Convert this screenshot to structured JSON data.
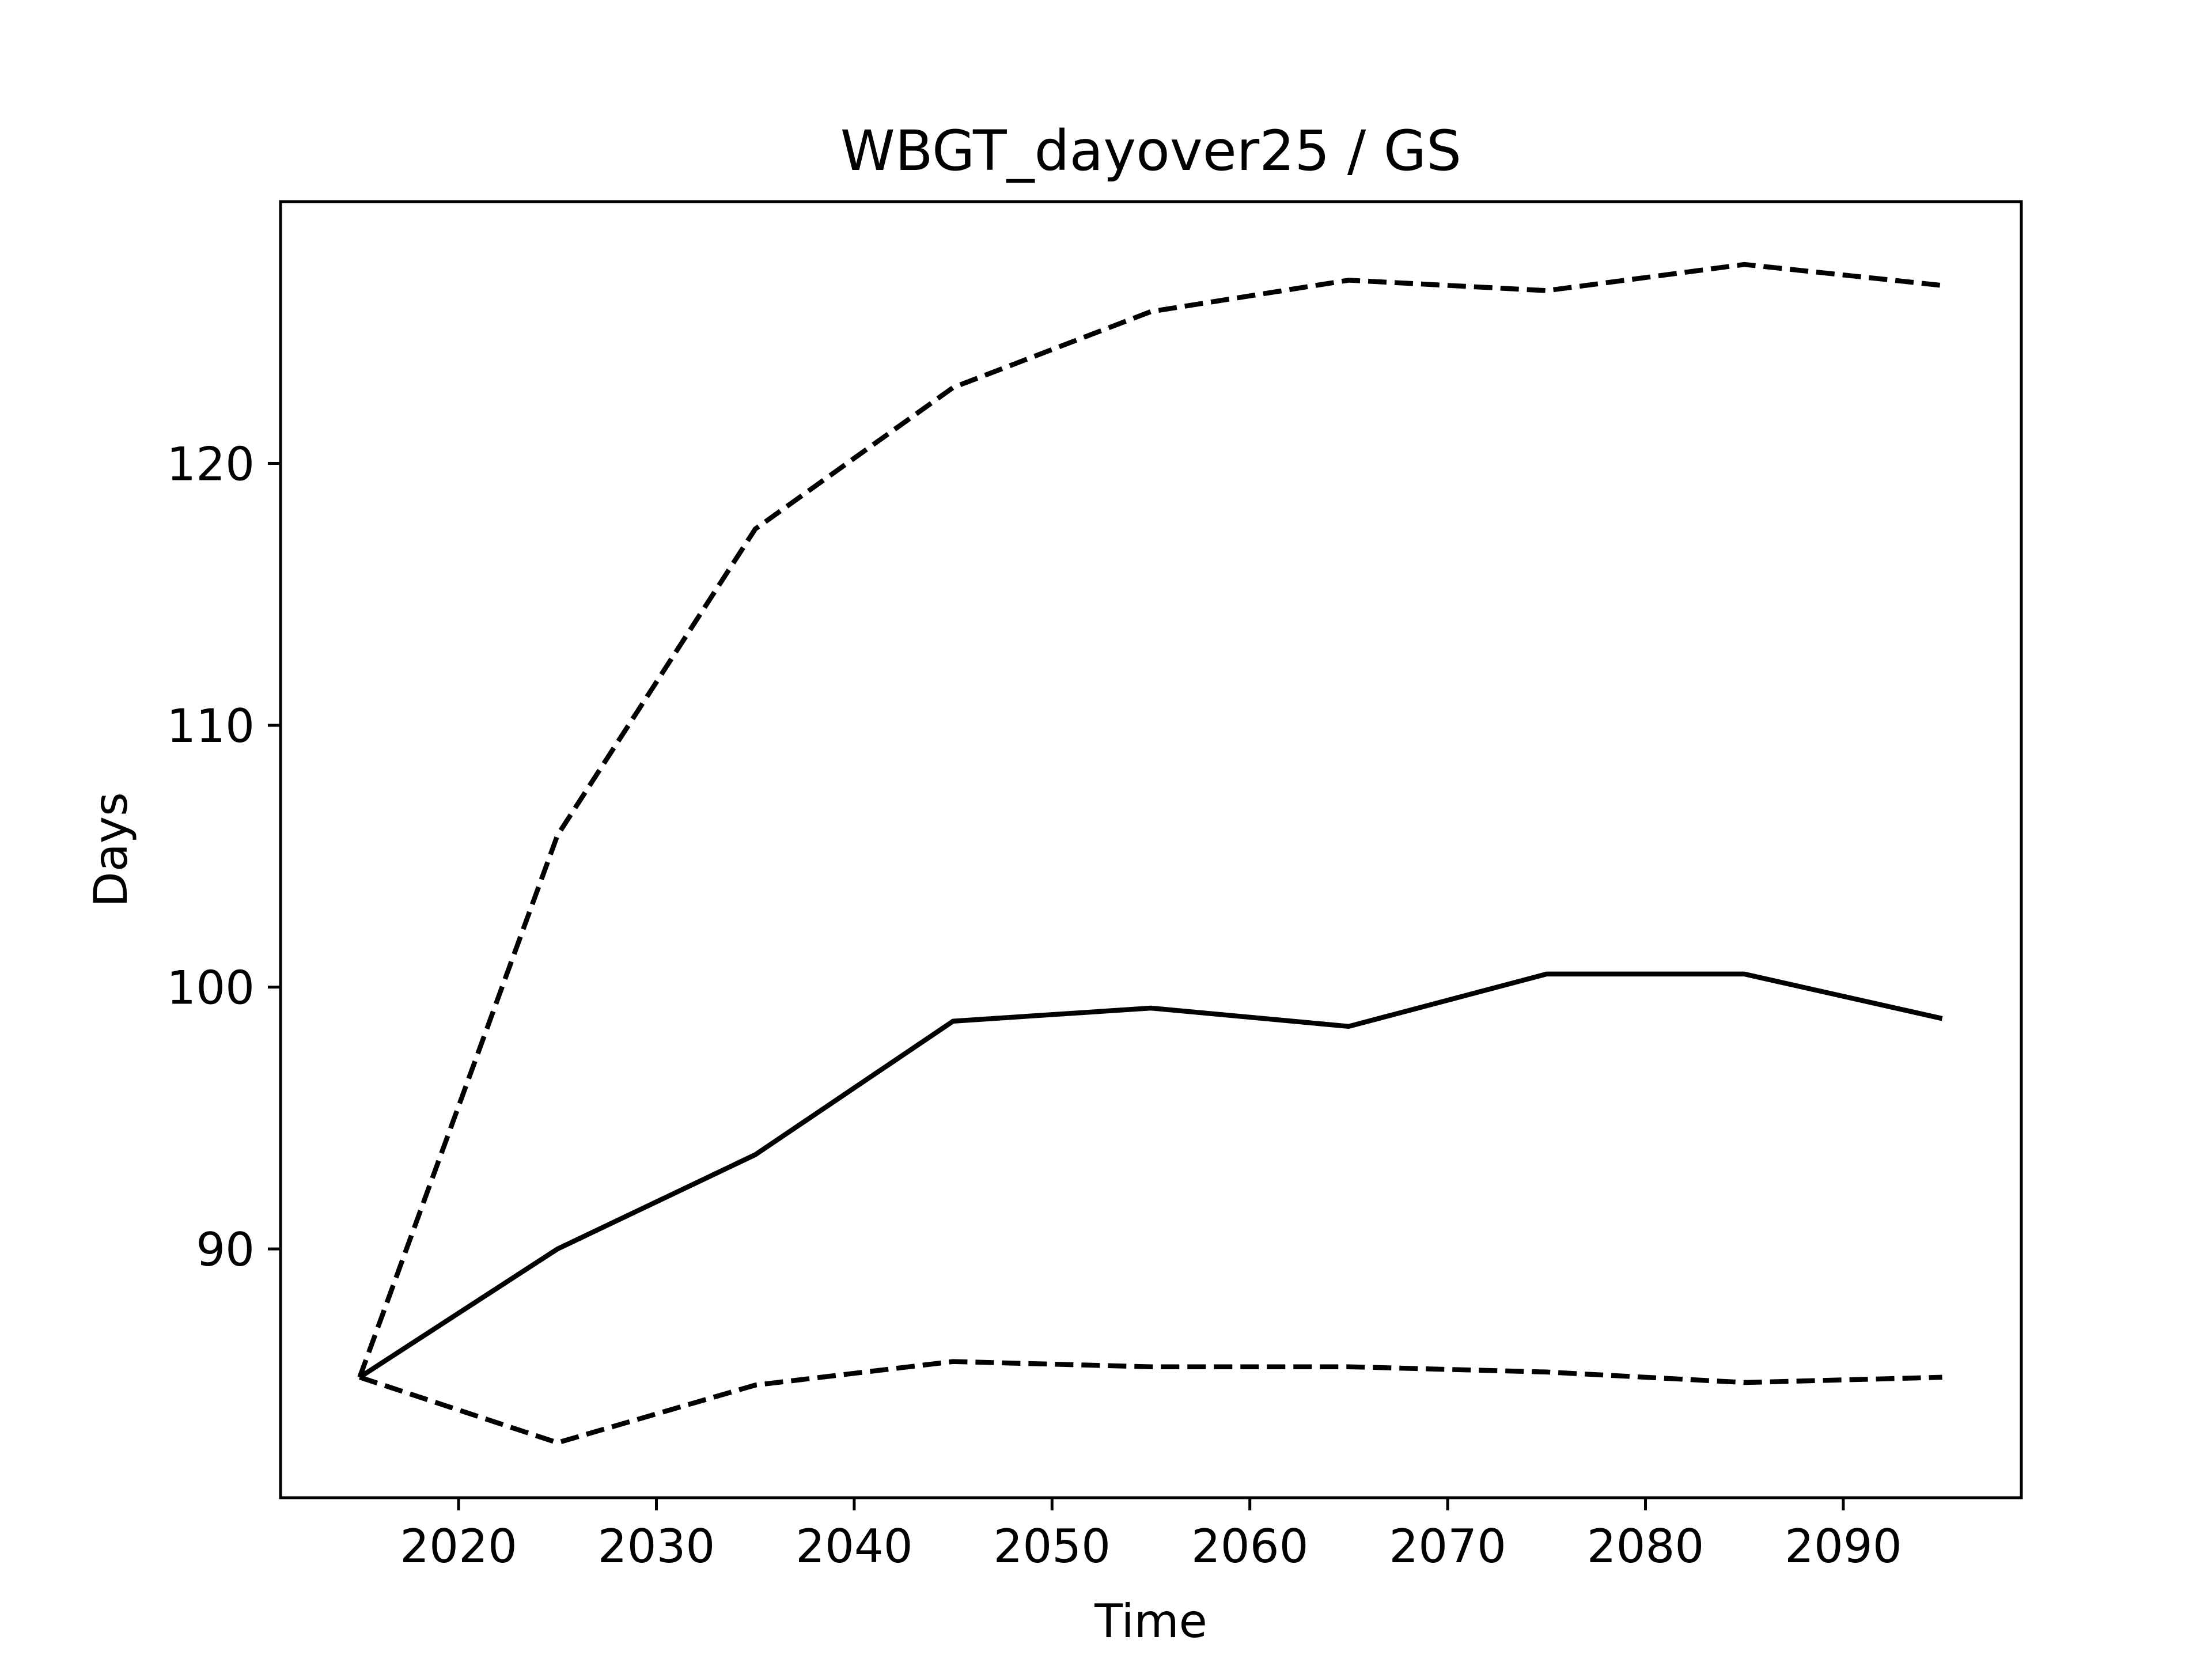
{
  "chart_data": {
    "type": "line",
    "title": "WBGT_dayover25 / GS",
    "xlabel": "Time",
    "ylabel": "Days",
    "xlim": [
      2011,
      2099
    ],
    "ylim": [
      80.5,
      130
    ],
    "xticks": [
      2020,
      2030,
      2040,
      2050,
      2060,
      2070,
      2080,
      2090
    ],
    "yticks": [
      90,
      100,
      110,
      120
    ],
    "grid": false,
    "x": [
      2015,
      2025,
      2035,
      2045,
      2055,
      2065,
      2075,
      2085,
      2095
    ],
    "series": [
      {
        "style": "dashed",
        "color": "#000000",
        "values": [
          85.1,
          105.8,
          117.5,
          122.9,
          125.8,
          127.0,
          126.6,
          127.6,
          126.8
        ]
      },
      {
        "style": "solid",
        "color": "#000000",
        "values": [
          85.1,
          90.0,
          93.6,
          98.7,
          99.2,
          98.5,
          100.5,
          100.5,
          98.8
        ]
      },
      {
        "style": "dashed",
        "color": "#000000",
        "values": [
          85.1,
          82.6,
          84.8,
          85.7,
          85.5,
          85.5,
          85.3,
          84.9,
          85.1
        ]
      }
    ]
  }
}
